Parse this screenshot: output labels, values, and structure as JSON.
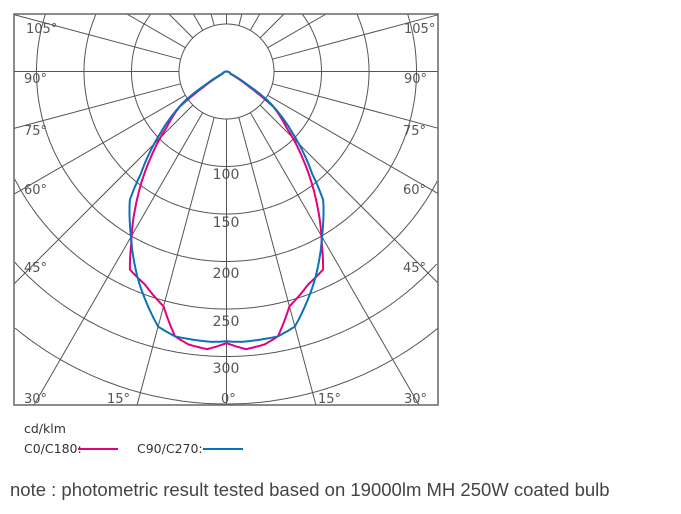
{
  "chart_data": {
    "type": "polar",
    "unit_label": "cd/klm",
    "radial_ticks": [
      100,
      150,
      200,
      250,
      300
    ],
    "radial_circles": [
      50,
      100,
      150,
      200,
      250,
      300,
      350
    ],
    "angle_labels_left": [
      "105°",
      "90°",
      "75°",
      "60°",
      "45°",
      "30°",
      "15°"
    ],
    "angle_label_center": "0°",
    "angle_labels_right": [
      "15°",
      "30°",
      "45°",
      "60°",
      "75°",
      "90°",
      "105°"
    ],
    "angle_grid_step_deg": 15,
    "grid": true,
    "series": [
      {
        "name": "C0/C180:",
        "color": "#e5007d",
        "gamma": [
          0,
          4,
          8,
          11,
          15,
          21,
          26,
          29,
          35,
          41,
          47,
          53,
          56,
          60,
          90
        ],
        "values": [
          286,
          293,
          290,
          284,
          256,
          240,
          232,
          207,
          164,
          123,
          86,
          62,
          30,
          5,
          0
        ]
      },
      {
        "name": "C90/C270:",
        "color": "#0a72b8",
        "gamma": [
          0,
          3,
          11,
          15,
          23,
          30,
          33,
          37,
          40,
          47,
          55,
          58,
          62,
          90
        ],
        "values": [
          284,
          285,
          284,
          278,
          238,
          201,
          187,
          169,
          140,
          95,
          52,
          25,
          5,
          0
        ]
      }
    ],
    "note": "note : photometric result tested based on 19000lm MH 250W coated bulb"
  }
}
